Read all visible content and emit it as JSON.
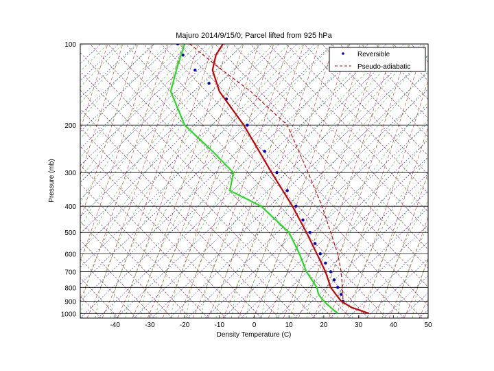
{
  "chart_data": {
    "type": "line",
    "title": "Majuro  2014/9/15/0; Parcel lifted from 925 hPa",
    "xlabel": "Density Temperature (C)",
    "ylabel": "Pressure (mb)",
    "xlim": [
      -50,
      50
    ],
    "ylim": [
      1050,
      100
    ],
    "yscale": "log",
    "xticks": [
      -40,
      -30,
      -20,
      -10,
      0,
      10,
      20,
      30,
      40,
      50
    ],
    "yticks": [
      100,
      200,
      300,
      400,
      500,
      600,
      700,
      800,
      900,
      1000
    ],
    "grid": true,
    "skew_lines": true,
    "legend_position": "top-right",
    "series": [
      {
        "name": "Reversible",
        "style": "dots",
        "color": "#0000cc",
        "points": [
          [
            25.5,
            900
          ],
          [
            25.0,
            850
          ],
          [
            24.0,
            800
          ],
          [
            23.0,
            750
          ],
          [
            22.0,
            700
          ],
          [
            20.5,
            650
          ],
          [
            19.0,
            600
          ],
          [
            17.5,
            550
          ],
          [
            16.0,
            500
          ],
          [
            14.0,
            450
          ],
          [
            12.0,
            400
          ],
          [
            9.5,
            350
          ],
          [
            6.5,
            300
          ],
          [
            3.0,
            250
          ],
          [
            -2.0,
            200
          ],
          [
            -8.0,
            160
          ],
          [
            -13.0,
            140
          ],
          [
            -17.0,
            125
          ],
          [
            -20.5,
            110
          ],
          [
            -22.0,
            100
          ]
        ]
      },
      {
        "name": "Pseudo-adiabatic",
        "style": "dashed",
        "color": "#cc0000",
        "points": [
          [
            25.5,
            925
          ],
          [
            25.5,
            850
          ],
          [
            25.0,
            700
          ],
          [
            24.0,
            600
          ],
          [
            22.0,
            500
          ],
          [
            19.5,
            400
          ],
          [
            15.5,
            300
          ],
          [
            9.5,
            200
          ],
          [
            -1.0,
            150
          ],
          [
            -11.0,
            120
          ],
          [
            -18.5,
            100
          ]
        ]
      },
      {
        "name": "",
        "style": "solid",
        "color": "#cc0000",
        "points": [
          [
            33.0,
            1000
          ],
          [
            28.0,
            950
          ],
          [
            25.0,
            900
          ],
          [
            23.5,
            850
          ],
          [
            22.0,
            800
          ],
          [
            20.5,
            700
          ],
          [
            18.0,
            600
          ],
          [
            15.0,
            500
          ],
          [
            11.0,
            400
          ],
          [
            5.0,
            300
          ],
          [
            -3.0,
            200
          ],
          [
            -10.0,
            150
          ],
          [
            -12.0,
            125
          ],
          [
            -11.0,
            110
          ],
          [
            -9.0,
            100
          ]
        ]
      },
      {
        "name": "",
        "style": "solid",
        "color": "#22dd22",
        "points": [
          [
            24.0,
            1000
          ],
          [
            22.0,
            950
          ],
          [
            20.0,
            900
          ],
          [
            18.5,
            850
          ],
          [
            18.0,
            800
          ],
          [
            15.0,
            700
          ],
          [
            13.0,
            600
          ],
          [
            10.0,
            500
          ],
          [
            2.0,
            400
          ],
          [
            -7.0,
            350
          ],
          [
            -6.0,
            300
          ],
          [
            -12.0,
            250
          ],
          [
            -20.0,
            200
          ],
          [
            -24.0,
            150
          ],
          [
            -22.0,
            120
          ],
          [
            -20.0,
            100
          ]
        ]
      }
    ]
  }
}
